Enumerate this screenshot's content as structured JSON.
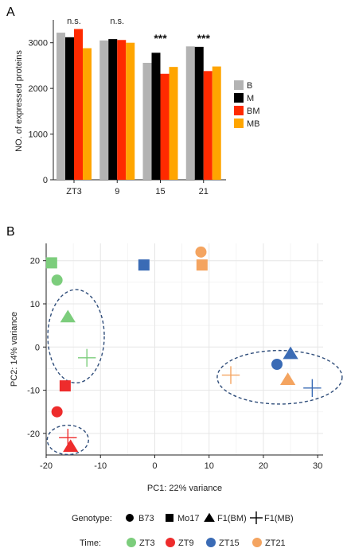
{
  "chart_data": [
    {
      "panel": "A",
      "type": "bar",
      "ylabel": "NO. of expressed proteins",
      "ylim": [
        0,
        3500
      ],
      "yticks": [
        0,
        1000,
        2000,
        3000
      ],
      "categories": [
        "ZT3",
        "9",
        "15",
        "21"
      ],
      "series": [
        {
          "name": "B",
          "color": "#b3b3b3",
          "values": [
            3220,
            3050,
            2560,
            2920
          ]
        },
        {
          "name": "M",
          "color": "#000000",
          "values": [
            3120,
            3080,
            2780,
            2910
          ]
        },
        {
          "name": "BM",
          "color": "#ff2a00",
          "values": [
            3300,
            3060,
            2320,
            2380
          ]
        },
        {
          "name": "MB",
          "color": "#ffa500",
          "values": [
            2880,
            3000,
            2470,
            2480
          ]
        }
      ],
      "significance": [
        "n.s.",
        "n.s.",
        "***",
        "***"
      ],
      "legend_position": "right"
    },
    {
      "panel": "B",
      "type": "scatter",
      "xlabel": "PC1: 22% variance",
      "ylabel": "PC2: 14% variance",
      "xlim": [
        -20,
        31
      ],
      "ylim": [
        -25,
        24
      ],
      "xticks": [
        -20,
        -10,
        0,
        10,
        20,
        30
      ],
      "yticks": [
        -20,
        -10,
        0,
        10,
        20
      ],
      "grid": true,
      "points": [
        {
          "genotype": "Mo17",
          "time": "ZT3",
          "x": -19,
          "y": 19.5
        },
        {
          "genotype": "B73",
          "time": "ZT3",
          "x": -18,
          "y": 15.5
        },
        {
          "genotype": "F1(BM)",
          "time": "ZT3",
          "x": -16,
          "y": 7
        },
        {
          "genotype": "F1(MB)",
          "time": "ZT3",
          "x": -12.5,
          "y": -2.5
        },
        {
          "genotype": "Mo17",
          "time": "ZT9",
          "x": -16.5,
          "y": -9
        },
        {
          "genotype": "B73",
          "time": "ZT9",
          "x": -18,
          "y": -15
        },
        {
          "genotype": "F1(MB)",
          "time": "ZT9",
          "x": -16,
          "y": -21
        },
        {
          "genotype": "F1(BM)",
          "time": "ZT9",
          "x": -15.5,
          "y": -23
        },
        {
          "genotype": "Mo17",
          "time": "ZT15",
          "x": -2,
          "y": 19
        },
        {
          "genotype": "B73",
          "time": "ZT15",
          "x": 22.5,
          "y": -4
        },
        {
          "genotype": "F1(BM)",
          "time": "ZT15",
          "x": 25,
          "y": -1.5
        },
        {
          "genotype": "F1(MB)",
          "time": "ZT15",
          "x": 29,
          "y": -9.5
        },
        {
          "genotype": "B73",
          "time": "ZT21",
          "x": 8.5,
          "y": 22
        },
        {
          "genotype": "Mo17",
          "time": "ZT21",
          "x": 8.7,
          "y": 19
        },
        {
          "genotype": "F1(MB)",
          "time": "ZT21",
          "x": 14,
          "y": -6.5
        },
        {
          "genotype": "F1(BM)",
          "time": "ZT21",
          "x": 24.5,
          "y": -7.5
        }
      ],
      "ellipses": [
        {
          "cx": -14.5,
          "cy": 2.5,
          "rx": 5.2,
          "ry": 10.8
        },
        {
          "cx": -16,
          "cy": -21.5,
          "rx": 3.8,
          "ry": 3.4
        },
        {
          "cx": 23,
          "cy": -7,
          "rx": 11.5,
          "ry": 6.2
        }
      ],
      "legend": {
        "genotype_title": "Genotype:",
        "genotypes": [
          {
            "label": "B73",
            "shape": "circle"
          },
          {
            "label": "Mo17",
            "shape": "square"
          },
          {
            "label": "F1(BM)",
            "shape": "triangle"
          },
          {
            "label": "F1(MB)",
            "shape": "plus"
          }
        ],
        "time_title": "Time:",
        "times": [
          {
            "label": "ZT3",
            "color": "#7ccd7c"
          },
          {
            "label": "ZT9",
            "color": "#ee2c2c"
          },
          {
            "label": "ZT15",
            "color": "#3a6bb5"
          },
          {
            "label": "ZT21",
            "color": "#f4a460"
          }
        ]
      }
    }
  ],
  "panel_labels": [
    "A",
    "B"
  ]
}
